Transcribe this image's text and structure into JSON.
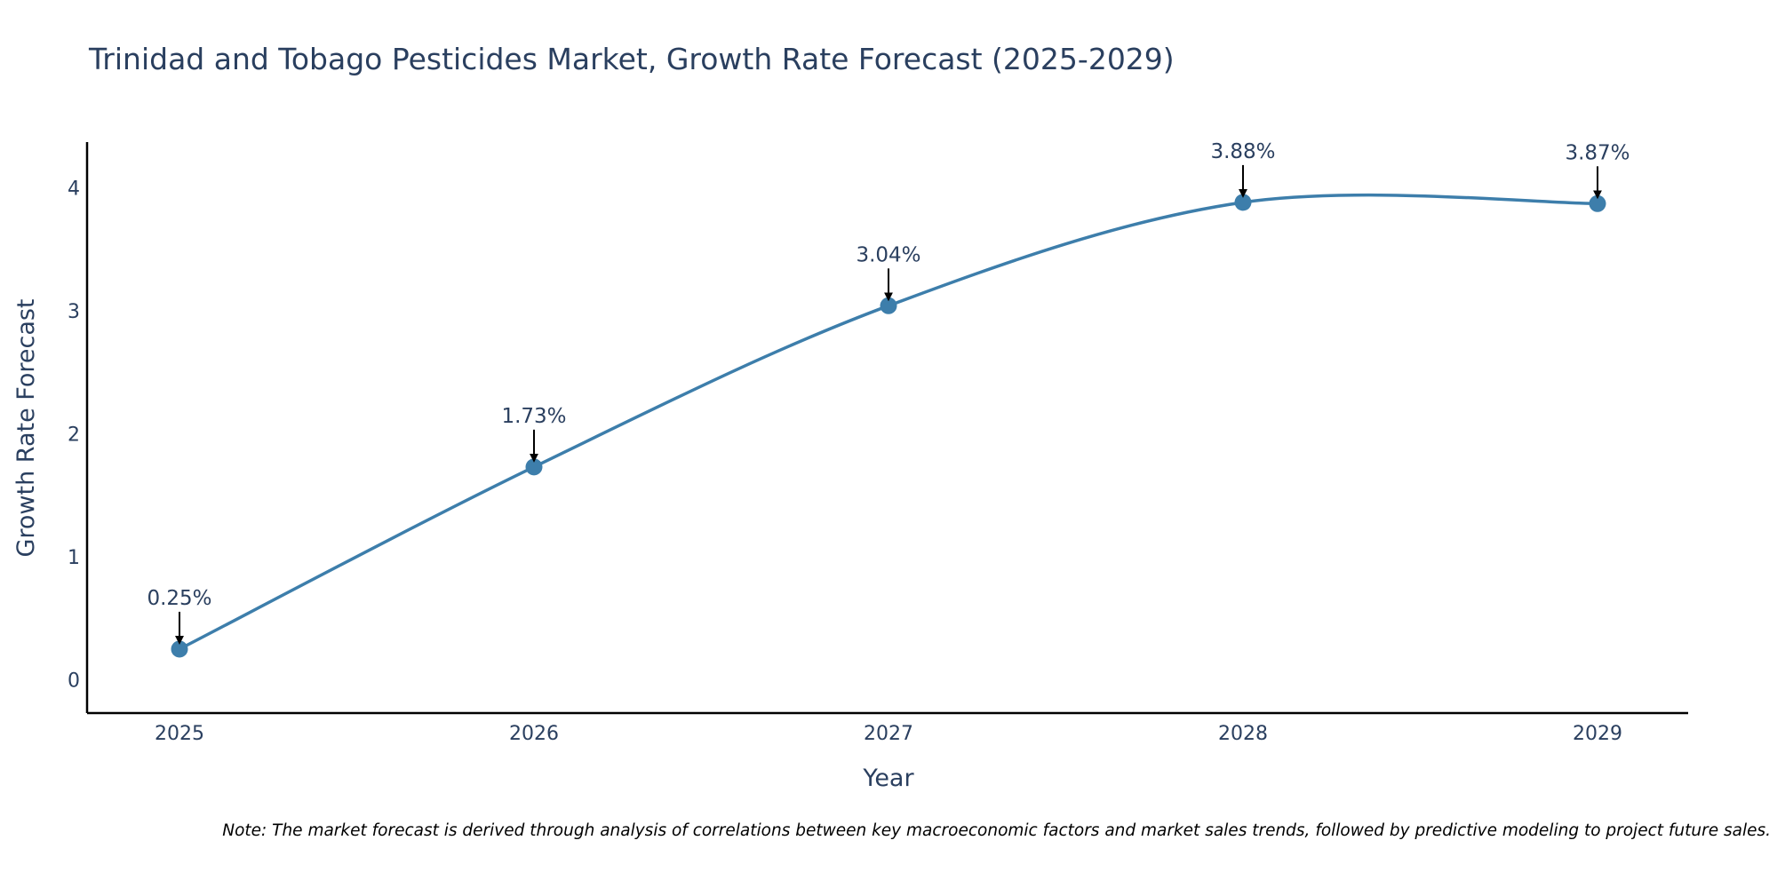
{
  "colors": {
    "line": "#3d7eab",
    "marker": "#3d7eab",
    "axis": "#000000",
    "text": "#2a3f5f",
    "arrow": "#000000"
  },
  "chart_data": {
    "type": "line",
    "title": "Trinidad and Tobago Pesticides Market, Growth Rate Forecast (2025-2029)",
    "xlabel": "Year",
    "ylabel": "Growth Rate Forecast",
    "categories": [
      "2025",
      "2026",
      "2027",
      "2028",
      "2029"
    ],
    "series": [
      {
        "name": "Growth Rate Forecast",
        "values": [
          0.25,
          1.73,
          3.04,
          3.88,
          3.87
        ],
        "labels": [
          "0.25%",
          "1.73%",
          "3.04%",
          "3.88%",
          "3.87%"
        ]
      }
    ],
    "y_ticks": [
      0,
      1,
      2,
      3,
      4
    ],
    "ylim": [
      -0.27,
      4.37
    ],
    "grid": false,
    "line_shape": "spline"
  },
  "note": "Note: The market forecast is derived through analysis of correlations between key macroeconomic factors and market sales trends, followed by predictive modeling to project future sales."
}
